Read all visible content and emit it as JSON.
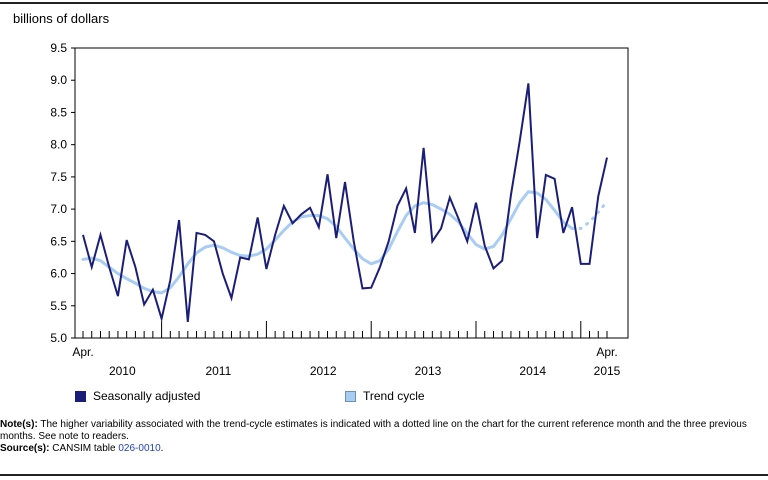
{
  "chart_data": {
    "type": "line",
    "ylabel": "billions of dollars",
    "ylim": [
      5.0,
      9.5
    ],
    "y_ticks": [
      "5.0",
      "5.5",
      "6.0",
      "6.5",
      "7.0",
      "7.5",
      "8.0",
      "8.5",
      "9.0",
      "9.5"
    ],
    "x_start_label": "Apr.",
    "x_end_label": "Apr.",
    "year_labels": [
      "2010",
      "2011",
      "2012",
      "2013",
      "2014",
      "2015"
    ],
    "months_from_start": {
      "first_month": "2010-04",
      "last_month": "2015-04",
      "count": 61
    },
    "series": [
      {
        "name": "Seasonally adjusted",
        "color": "#1b1e78",
        "values": [
          6.6,
          6.1,
          6.6,
          6.1,
          5.65,
          6.52,
          6.1,
          5.52,
          5.75,
          5.3,
          5.9,
          6.83,
          5.25,
          6.63,
          6.6,
          6.5,
          6.0,
          5.62,
          6.25,
          6.22,
          6.87,
          6.07,
          6.6,
          7.05,
          6.78,
          6.92,
          7.02,
          6.72,
          7.54,
          6.55,
          7.42,
          6.5,
          5.77,
          5.78,
          6.1,
          6.5,
          7.05,
          7.32,
          6.63,
          7.95,
          6.5,
          6.7,
          7.18,
          6.85,
          6.5,
          7.1,
          6.43,
          6.08,
          6.2,
          7.22,
          8.05,
          8.95,
          6.55,
          7.53,
          7.47,
          6.63,
          7.03,
          6.15,
          6.15,
          7.2,
          7.8
        ]
      },
      {
        "name": "Trend cycle",
        "color": "#a8ccf2",
        "dotted_last_points": 4,
        "values": [
          6.22,
          6.24,
          6.2,
          6.1,
          6.0,
          5.92,
          5.85,
          5.77,
          5.72,
          5.7,
          5.78,
          5.95,
          6.15,
          6.32,
          6.41,
          6.44,
          6.4,
          6.33,
          6.28,
          6.27,
          6.3,
          6.38,
          6.52,
          6.67,
          6.8,
          6.88,
          6.9,
          6.9,
          6.85,
          6.73,
          6.55,
          6.38,
          6.23,
          6.15,
          6.2,
          6.38,
          6.65,
          6.9,
          7.05,
          7.1,
          7.07,
          7.0,
          6.92,
          6.8,
          6.62,
          6.45,
          6.38,
          6.42,
          6.6,
          6.85,
          7.1,
          7.27,
          7.25,
          7.15,
          6.98,
          6.8,
          6.7,
          6.7,
          6.8,
          6.95,
          7.12
        ]
      }
    ]
  },
  "legend": {
    "seasonally_adjusted": "Seasonally adjusted",
    "trend_cycle": "Trend cycle"
  },
  "notes": {
    "note_label": "Note(s):",
    "note_text": " The higher variability associated with the trend-cycle estimates is indicated with a dotted line on the chart for the current reference month and the three previous months. See note to readers.",
    "source_label": "Source(s):",
    "source_text": " CANSIM table ",
    "source_link": "026-0010",
    "source_end": "."
  }
}
